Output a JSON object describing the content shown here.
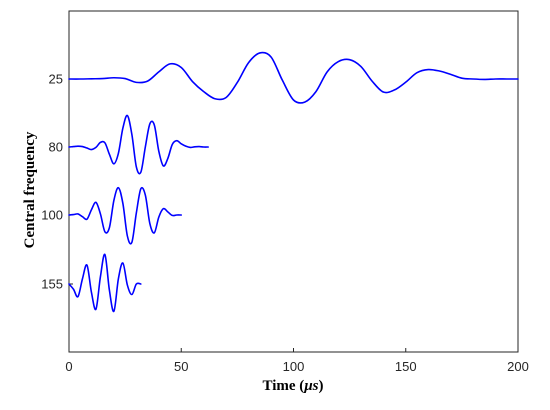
{
  "chart_data": {
    "type": "line",
    "xlabel_prefix": "Time (",
    "xlabel_unit": "μs",
    "xlabel_suffix": ")",
    "ylabel": "Central frequency",
    "xlim": [
      0,
      200
    ],
    "xticks": [
      0,
      50,
      100,
      150,
      200
    ],
    "yticks": [
      "25",
      "80",
      "100",
      "155"
    ],
    "grid": false,
    "line_color": "#0000ff",
    "series": [
      {
        "label": "25",
        "level": 0,
        "x": [
          0,
          5,
          10,
          15,
          20,
          25,
          30,
          35,
          40,
          45,
          50,
          55,
          60,
          65,
          70,
          75,
          80,
          85,
          90,
          95,
          100,
          105,
          110,
          115,
          120,
          125,
          130,
          135,
          140,
          145,
          150,
          155,
          160,
          165,
          170,
          175,
          180,
          185,
          190,
          195,
          200
        ],
        "y": [
          0,
          0,
          0.01,
          0.02,
          0.06,
          0.02,
          -0.16,
          -0.1,
          0.34,
          0.72,
          0.55,
          -0.12,
          -0.6,
          -0.94,
          -0.88,
          -0.16,
          0.78,
          1.24,
          1.05,
          -0.05,
          -1,
          -1.1,
          -0.6,
          0.34,
          0.83,
          0.92,
          0.6,
          -0.1,
          -0.62,
          -0.52,
          -0.15,
          0.3,
          0.45,
          0.38,
          0.22,
          0.04,
          0,
          -0.02,
          0,
          0,
          0
        ]
      },
      {
        "label": "80",
        "level": 1,
        "x": [
          0,
          2,
          4,
          6,
          8,
          10,
          12,
          14,
          16,
          18,
          20,
          22,
          24,
          26,
          28,
          30,
          32,
          34,
          36,
          38,
          40,
          42,
          44,
          46,
          48,
          50,
          52,
          54,
          56,
          58,
          60,
          62
        ],
        "y": [
          0,
          0.02,
          0.04,
          0.02,
          -0.05,
          -0.12,
          -0.02,
          0.22,
          0.2,
          -0.35,
          -0.8,
          -0.3,
          0.9,
          1.5,
          0.6,
          -0.95,
          -1.2,
          0,
          1.1,
          1.05,
          -0.2,
          -0.9,
          -0.55,
          0.12,
          0.3,
          0.15,
          0.04,
          -0.02,
          0.01,
          0.02,
          0,
          0
        ]
      },
      {
        "label": "100",
        "level": 2,
        "x": [
          0,
          2,
          4,
          6,
          8,
          10,
          12,
          14,
          16,
          18,
          20,
          22,
          24,
          26,
          28,
          30,
          32,
          34,
          36,
          38,
          40,
          42,
          44,
          46,
          48,
          50
        ],
        "y": [
          0,
          0.02,
          0.05,
          -0.08,
          -0.2,
          0.25,
          0.6,
          0.05,
          -0.8,
          -0.6,
          0.7,
          1.3,
          0.55,
          -1,
          -1.3,
          0.1,
          1.25,
          0.95,
          -0.4,
          -0.85,
          -0.1,
          0.3,
          0.15,
          -0.02,
          0,
          0
        ]
      },
      {
        "label": "155",
        "level": 3,
        "x": [
          0,
          2,
          4,
          6,
          8,
          10,
          12,
          14,
          16,
          18,
          20,
          22,
          24,
          26,
          28,
          30,
          32
        ],
        "y": [
          0,
          -0.25,
          -0.6,
          0.25,
          0.9,
          -0.4,
          -1.2,
          0.35,
          1.4,
          -0.3,
          -1.3,
          0.25,
          1,
          -0.05,
          -0.5,
          0,
          0
        ]
      }
    ]
  }
}
